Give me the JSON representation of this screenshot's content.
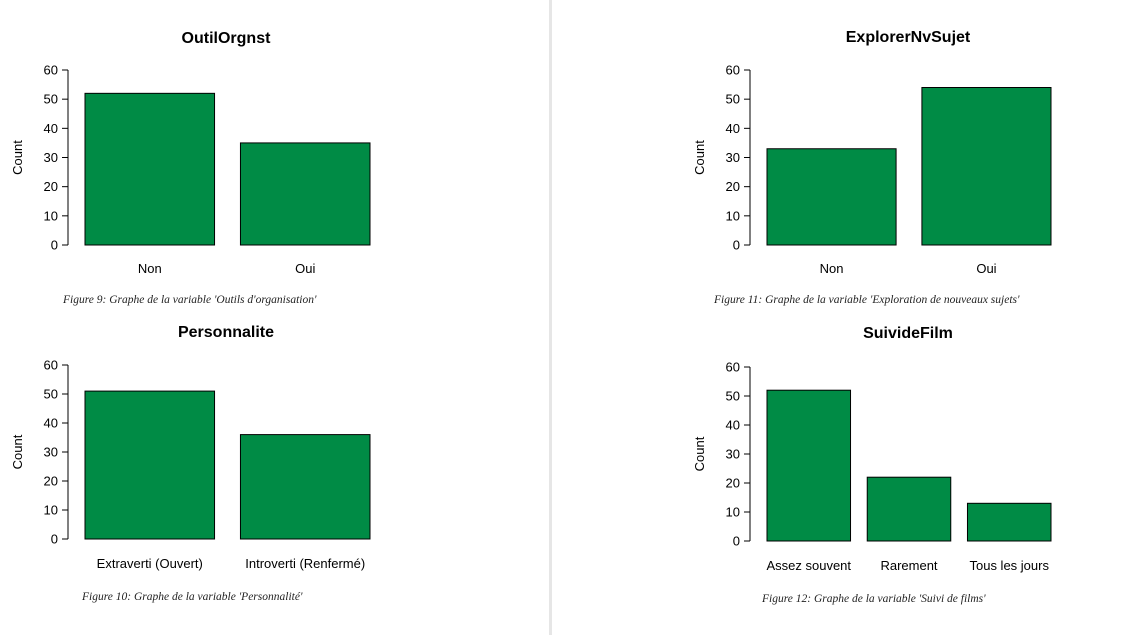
{
  "chart_data": [
    {
      "type": "bar",
      "title": "OutilOrgnst",
      "ylabel": "Count",
      "xlabel": "",
      "categories": [
        "Non",
        "Oui"
      ],
      "values": [
        52,
        35
      ],
      "ylim": [
        0,
        60
      ],
      "yticks": [
        "0",
        "10",
        "20",
        "30",
        "40",
        "50",
        "60"
      ],
      "grid": false,
      "caption": "Figure 9: Graphe de la variable 'Outils d'organisation'"
    },
    {
      "type": "bar",
      "title": "ExplorerNvSujet",
      "ylabel": "Count",
      "xlabel": "",
      "categories": [
        "Non",
        "Oui"
      ],
      "values": [
        33,
        54
      ],
      "ylim": [
        0,
        60
      ],
      "yticks": [
        "0",
        "10",
        "20",
        "30",
        "40",
        "50",
        "60"
      ],
      "grid": false,
      "caption": "Figure 11: Graphe de la variable 'Exploration de nouveaux sujets'"
    },
    {
      "type": "bar",
      "title": "Personnalite",
      "ylabel": "Count",
      "xlabel": "",
      "categories": [
        "Extraverti (Ouvert)",
        "Introverti (Renfermé)"
      ],
      "values": [
        51,
        36
      ],
      "ylim": [
        0,
        60
      ],
      "yticks": [
        "0",
        "10",
        "20",
        "30",
        "40",
        "50",
        "60"
      ],
      "grid": false,
      "caption": "Figure 10: Graphe de la variable 'Personnalité'"
    },
    {
      "type": "bar",
      "title": "SuivideFilm",
      "ylabel": "Count",
      "xlabel": "",
      "categories": [
        "Assez souvent",
        "Rarement",
        "Tous les jours"
      ],
      "values": [
        52,
        22,
        13
      ],
      "ylim": [
        0,
        60
      ],
      "yticks": [
        "0",
        "10",
        "20",
        "30",
        "40",
        "50",
        "60"
      ],
      "grid": false,
      "caption": "Figure 12: Graphe de la variable 'Suivi de films'"
    }
  ],
  "colors": {
    "bar": "#008b45",
    "bar_stroke": "#000000",
    "axis": "#000000"
  }
}
